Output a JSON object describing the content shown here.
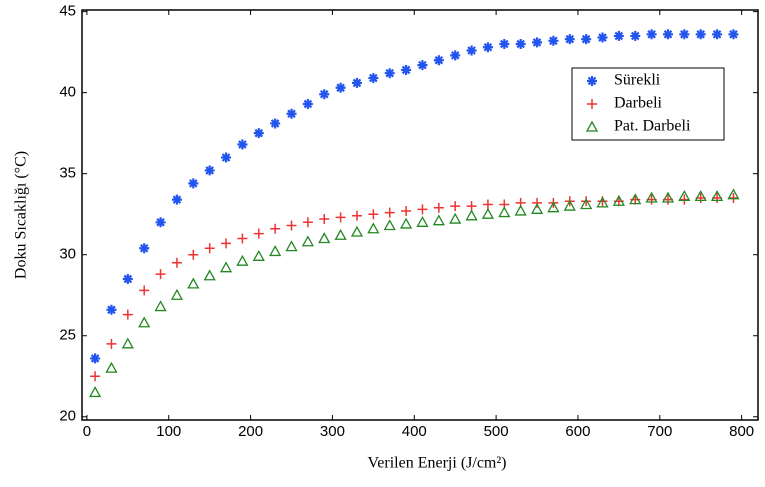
{
  "chart_data": {
    "type": "scatter",
    "xlabel": "Verilen Enerji (J/cm²)",
    "ylabel": "Doku Sıcaklığı (°C)",
    "x": [
      10,
      30,
      50,
      70,
      90,
      110,
      130,
      150,
      170,
      190,
      210,
      230,
      250,
      270,
      290,
      310,
      330,
      350,
      370,
      390,
      410,
      430,
      450,
      470,
      490,
      510,
      530,
      550,
      570,
      590,
      610,
      630,
      650,
      670,
      690,
      710,
      730,
      750,
      770,
      790
    ],
    "series": [
      {
        "name": "Sürekli",
        "color": "#2255ee",
        "marker": "star",
        "values": [
          23.6,
          26.6,
          28.5,
          30.4,
          32.0,
          33.4,
          34.4,
          35.2,
          36.0,
          36.8,
          37.5,
          38.1,
          38.7,
          39.3,
          39.9,
          40.3,
          40.6,
          40.9,
          41.2,
          41.4,
          41.7,
          42.0,
          42.3,
          42.6,
          42.8,
          43.0,
          43.0,
          43.1,
          43.2,
          43.3,
          43.3,
          43.4,
          43.5,
          43.5,
          43.6,
          43.6,
          43.6,
          43.6,
          43.6,
          43.6
        ]
      },
      {
        "name": "Darbeli",
        "color": "#ee3333",
        "marker": "plus",
        "values": [
          22.5,
          24.5,
          26.3,
          27.8,
          28.8,
          29.5,
          30.0,
          30.4,
          30.7,
          31.0,
          31.3,
          31.6,
          31.8,
          32.0,
          32.2,
          32.3,
          32.4,
          32.5,
          32.6,
          32.7,
          32.8,
          32.9,
          33.0,
          33.0,
          33.1,
          33.1,
          33.2,
          33.2,
          33.2,
          33.3,
          33.3,
          33.3,
          33.3,
          33.4,
          33.4,
          33.4,
          33.4,
          33.5,
          33.5,
          33.5
        ]
      },
      {
        "name": "Pat. Darbeli",
        "color": "#228822",
        "marker": "triangle",
        "values": [
          21.5,
          23.0,
          24.5,
          25.8,
          26.8,
          27.5,
          28.2,
          28.7,
          29.2,
          29.6,
          29.9,
          30.2,
          30.5,
          30.8,
          31.0,
          31.2,
          31.4,
          31.6,
          31.8,
          31.9,
          32.0,
          32.1,
          32.2,
          32.4,
          32.5,
          32.6,
          32.7,
          32.8,
          32.9,
          33.0,
          33.1,
          33.2,
          33.3,
          33.4,
          33.5,
          33.5,
          33.6,
          33.6,
          33.6,
          33.7
        ]
      }
    ],
    "xlim": [
      -6,
      820
    ],
    "ylim": [
      19.8,
      45.1
    ],
    "xticks": [
      0,
      100,
      200,
      300,
      400,
      500,
      600,
      700,
      800
    ],
    "yticks": [
      20,
      25,
      30,
      35,
      40,
      45
    ],
    "legend": "upper right"
  }
}
